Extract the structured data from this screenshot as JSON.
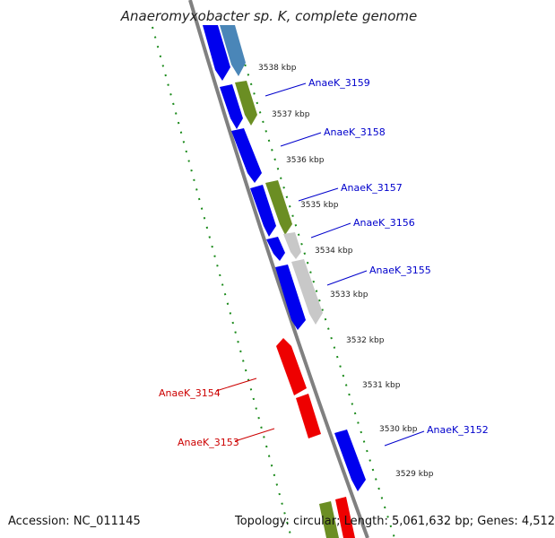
{
  "title": "Anaeromyxobacter sp. K, complete genome",
  "footer": {
    "accession": "Accession: NC_011145",
    "summary": "Topology: circular; Length: 5,061,632 bp; Genes: 4,512"
  },
  "colors": {
    "forward_cds": "#0000ee",
    "reverse_cds": "#ee0000",
    "forward_rna_like": "#4a86b8",
    "forward_other": "#6b8e23",
    "forward_grey": "#c0c0c0",
    "backbone": "#808080",
    "tick": "#1a8a1a",
    "forward_label": "#0000cc",
    "reverse_label": "#cc0000"
  },
  "ticks": [
    "3538 kbp",
    "3537 kbp",
    "3536 kbp",
    "3535 kbp",
    "3534 kbp",
    "3533 kbp",
    "3532 kbp",
    "3531 kbp",
    "3530 kbp",
    "3529 kbp"
  ],
  "forward_genes": [
    "AnaeK_3159",
    "AnaeK_3158",
    "AnaeK_3157",
    "AnaeK_3156",
    "AnaeK_3155",
    "AnaeK_3152"
  ],
  "reverse_genes": [
    "AnaeK_3154",
    "AnaeK_3153"
  ]
}
